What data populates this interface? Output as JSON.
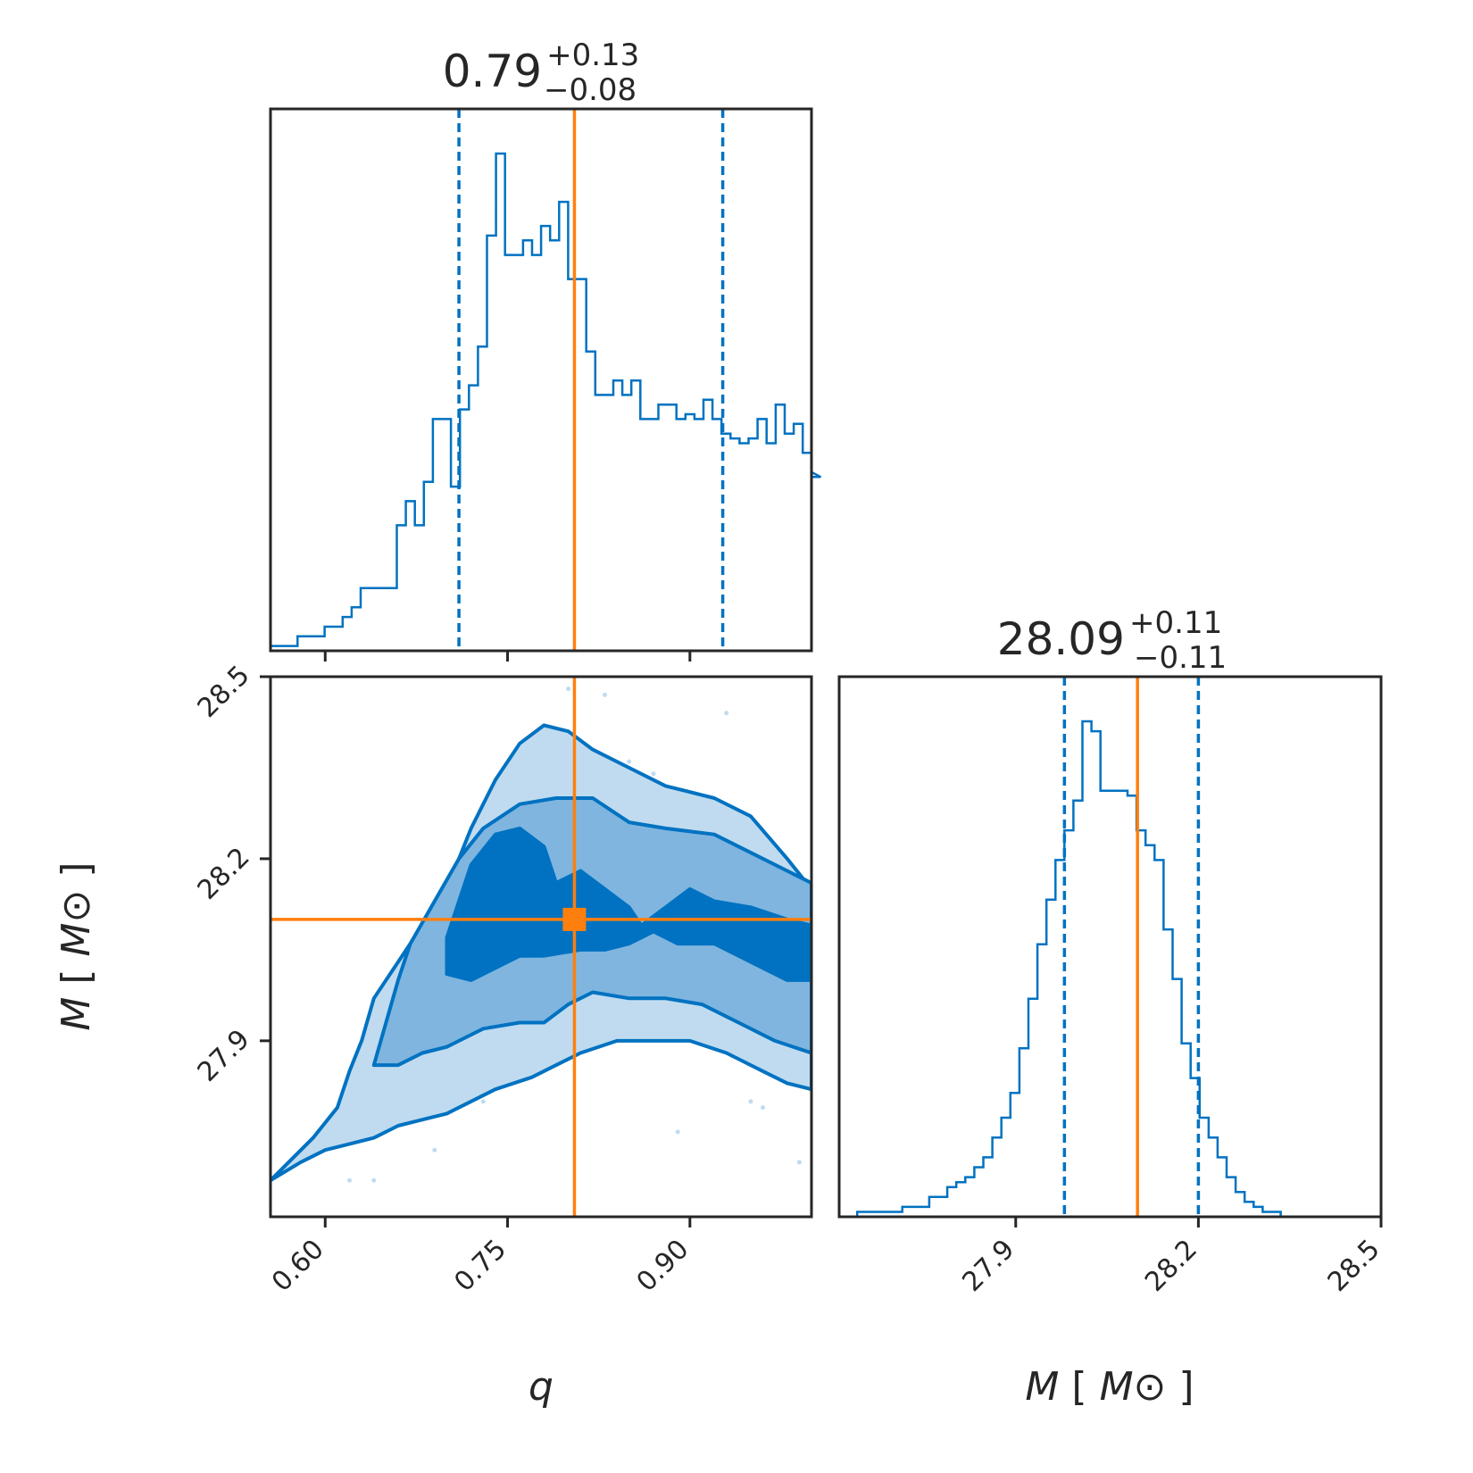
{
  "chart_data": {
    "type": "corner",
    "colors": {
      "samples": "#0072c1",
      "contour_1sigma": "#0072c1",
      "contour_2sigma": "#7fb5df",
      "contour_3sigma": "#c0dbf0",
      "truth": "#ff7f0e",
      "axes": "#262626"
    },
    "parameters": [
      {
        "name": "q",
        "label": "q",
        "unit": "",
        "range": [
          0.555,
          1.0
        ],
        "ticks": [
          "0.60",
          "0.75",
          "0.90"
        ],
        "tick_values": [
          0.6,
          0.75,
          0.9
        ],
        "median": 0.79,
        "title_value": "0.79",
        "title_plus": "+0.13",
        "title_minus": "−0.08",
        "quantiles": [
          0.71,
          0.927
        ],
        "truth": 0.805,
        "histogram": {
          "edges_start": 0.555,
          "bin_width": 0.00742,
          "heights": [
            0.01,
            0.01,
            0.01,
            0.03,
            0.03,
            0.03,
            0.05,
            0.05,
            0.07,
            0.09,
            0.13,
            0.13,
            0.13,
            0.13,
            0.26,
            0.31,
            0.26,
            0.35,
            0.48,
            0.48,
            0.34,
            0.5,
            0.55,
            0.63,
            0.86,
            1.03,
            0.82,
            0.82,
            0.85,
            0.82,
            0.88,
            0.85,
            0.93,
            0.77,
            0.77,
            0.62,
            0.53,
            0.53,
            0.56,
            0.53,
            0.56,
            0.48,
            0.48,
            0.51,
            0.51,
            0.48,
            0.49,
            0.48,
            0.52,
            0.48,
            0.45,
            0.44,
            0.43,
            0.44,
            0.48,
            0.43,
            0.51,
            0.45,
            0.47,
            0.41,
            0.37,
            0.36
          ]
        }
      },
      {
        "name": "M",
        "label": "M",
        "unit": "M⊙",
        "range": [
          27.61,
          28.5
        ],
        "ticks": [
          "27.9",
          "28.2",
          "28.5"
        ],
        "tick_values": [
          27.9,
          28.2,
          28.5
        ],
        "median": 28.09,
        "title_value": "28.09",
        "title_plus": "+0.11",
        "title_minus": "−0.11",
        "quantiles": [
          27.98,
          28.2
        ],
        "truth": 28.1,
        "histogram": {
          "edges_start": 27.61,
          "bin_width": 0.0148,
          "heights": [
            0.0,
            0.0,
            0.01,
            0.01,
            0.01,
            0.01,
            0.01,
            0.02,
            0.02,
            0.02,
            0.04,
            0.04,
            0.06,
            0.07,
            0.08,
            0.1,
            0.12,
            0.16,
            0.2,
            0.25,
            0.34,
            0.44,
            0.55,
            0.64,
            0.72,
            0.78,
            0.84,
            1.0,
            0.98,
            0.86,
            0.86,
            0.86,
            0.85,
            0.78,
            0.75,
            0.72,
            0.58,
            0.48,
            0.35,
            0.28,
            0.2,
            0.16,
            0.12,
            0.08,
            0.05,
            0.03,
            0.02,
            0.01,
            0.01,
            0.0
          ]
        }
      }
    ],
    "joint": {
      "truth_point": [
        0.805,
        28.1
      ],
      "levels": [
        {
          "level": "3sigma",
          "outline": [
            [
              0.555,
              27.67
            ],
            [
              0.57,
              27.7
            ],
            [
              0.59,
              27.74
            ],
            [
              0.61,
              27.79
            ],
            [
              0.62,
              27.85
            ],
            [
              0.63,
              27.9
            ],
            [
              0.64,
              27.97
            ],
            [
              0.66,
              28.03
            ],
            [
              0.68,
              28.09
            ],
            [
              0.7,
              28.15
            ],
            [
              0.72,
              28.25
            ],
            [
              0.74,
              28.33
            ],
            [
              0.76,
              28.39
            ],
            [
              0.78,
              28.42
            ],
            [
              0.8,
              28.41
            ],
            [
              0.82,
              28.38
            ],
            [
              0.85,
              28.35
            ],
            [
              0.88,
              28.32
            ],
            [
              0.92,
              28.3
            ],
            [
              0.95,
              28.27
            ],
            [
              0.98,
              28.2
            ],
            [
              1.0,
              28.15
            ],
            [
              1.0,
              27.82
            ],
            [
              0.98,
              27.83
            ],
            [
              0.96,
              27.85
            ],
            [
              0.93,
              27.88
            ],
            [
              0.9,
              27.9
            ],
            [
              0.87,
              27.9
            ],
            [
              0.84,
              27.9
            ],
            [
              0.81,
              27.88
            ],
            [
              0.79,
              27.86
            ],
            [
              0.77,
              27.84
            ],
            [
              0.74,
              27.82
            ],
            [
              0.72,
              27.8
            ],
            [
              0.7,
              27.78
            ],
            [
              0.68,
              27.77
            ],
            [
              0.66,
              27.76
            ],
            [
              0.64,
              27.74
            ],
            [
              0.62,
              27.73
            ],
            [
              0.6,
              27.72
            ],
            [
              0.58,
              27.7
            ],
            [
              0.555,
              27.67
            ]
          ]
        },
        {
          "level": "2sigma",
          "outline": [
            [
              0.64,
              27.86
            ],
            [
              0.65,
              27.93
            ],
            [
              0.66,
              28.0
            ],
            [
              0.67,
              28.06
            ],
            [
              0.69,
              28.13
            ],
            [
              0.71,
              28.2
            ],
            [
              0.73,
              28.25
            ],
            [
              0.76,
              28.29
            ],
            [
              0.79,
              28.3
            ],
            [
              0.82,
              28.3
            ],
            [
              0.85,
              28.26
            ],
            [
              0.88,
              28.25
            ],
            [
              0.92,
              28.24
            ],
            [
              0.95,
              28.21
            ],
            [
              0.98,
              28.18
            ],
            [
              1.0,
              28.16
            ],
            [
              1.0,
              27.88
            ],
            [
              0.97,
              27.9
            ],
            [
              0.94,
              27.93
            ],
            [
              0.91,
              27.96
            ],
            [
              0.88,
              27.97
            ],
            [
              0.85,
              27.97
            ],
            [
              0.82,
              27.98
            ],
            [
              0.8,
              27.96
            ],
            [
              0.78,
              27.93
            ],
            [
              0.76,
              27.93
            ],
            [
              0.73,
              27.92
            ],
            [
              0.7,
              27.89
            ],
            [
              0.68,
              27.88
            ],
            [
              0.66,
              27.86
            ],
            [
              0.64,
              27.86
            ]
          ]
        },
        {
          "level": "1sigma",
          "outline": [
            [
              0.7,
              28.07
            ],
            [
              0.71,
              28.13
            ],
            [
              0.72,
              28.19
            ],
            [
              0.74,
              28.24
            ],
            [
              0.76,
              28.25
            ],
            [
              0.78,
              28.22
            ],
            [
              0.79,
              28.16
            ],
            [
              0.81,
              28.18
            ],
            [
              0.83,
              28.15
            ],
            [
              0.85,
              28.12
            ],
            [
              0.86,
              28.09
            ],
            [
              0.88,
              28.12
            ],
            [
              0.9,
              28.15
            ],
            [
              0.92,
              28.13
            ],
            [
              0.95,
              28.12
            ],
            [
              0.98,
              28.1
            ],
            [
              1.0,
              28.09
            ],
            [
              1.0,
              28.0
            ],
            [
              0.98,
              28.0
            ],
            [
              0.96,
              28.02
            ],
            [
              0.94,
              28.04
            ],
            [
              0.92,
              28.06
            ],
            [
              0.89,
              28.06
            ],
            [
              0.87,
              28.08
            ],
            [
              0.85,
              28.06
            ],
            [
              0.83,
              28.05
            ],
            [
              0.81,
              28.05
            ],
            [
              0.78,
              28.04
            ],
            [
              0.76,
              28.04
            ],
            [
              0.74,
              28.02
            ],
            [
              0.72,
              28.0
            ],
            [
              0.7,
              28.01
            ],
            [
              0.7,
              28.07
            ]
          ]
        }
      ],
      "outlier_points": [
        [
          0.62,
          27.67
        ],
        [
          0.64,
          27.67
        ],
        [
          0.69,
          27.72
        ],
        [
          0.73,
          27.8
        ],
        [
          0.75,
          27.86
        ],
        [
          0.8,
          28.48
        ],
        [
          0.83,
          28.47
        ],
        [
          0.85,
          28.36
        ],
        [
          0.87,
          28.34
        ],
        [
          0.88,
          28.3
        ],
        [
          0.89,
          27.75
        ],
        [
          0.93,
          28.44
        ],
        [
          0.95,
          27.8
        ],
        [
          0.96,
          27.79
        ],
        [
          0.99,
          27.7
        ]
      ]
    }
  }
}
